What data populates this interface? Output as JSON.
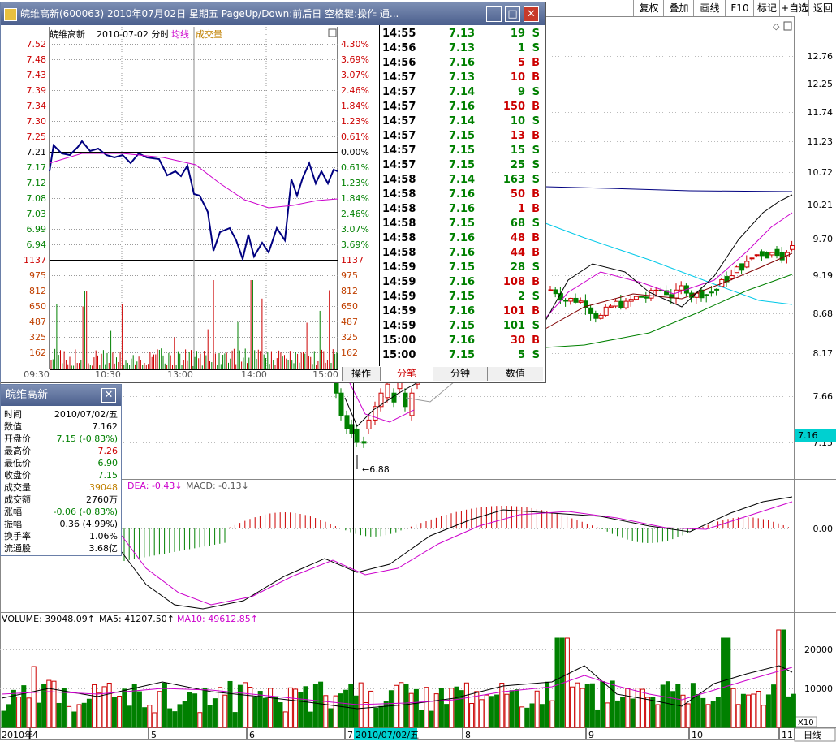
{
  "toolbar": {
    "buttons": [
      "复权",
      "叠加",
      "画线",
      "F10",
      "标记",
      "+自选",
      "返回"
    ],
    "extra_icon": "diamond-icon"
  },
  "price_axis": [
    "12.76",
    "12.25",
    "11.74",
    "11.23",
    "10.72",
    "10.21",
    "9.70",
    "9.19",
    "8.68",
    "8.17",
    "7.66",
    "7.15"
  ],
  "current_price_tag": "7.16",
  "low_marker": "6.88",
  "macd": {
    "dea_label": "DEA: -0.43",
    "macd_label": "MACD: -0.13",
    "zero_label": "0.00"
  },
  "volume": {
    "vol_label": "VOLUME: 39048.09",
    "ma5_label": "MA5: 41207.50",
    "ma10_label": "MA10: 49612.85",
    "axis": [
      "20000",
      "10000"
    ],
    "unit": "X10"
  },
  "date_axis": {
    "year": "2010年",
    "months": [
      "4",
      "5",
      "6",
      "7",
      "8",
      "9",
      "10",
      "11"
    ],
    "cursor_date": "2010/07/02/五",
    "period_btn": "日线"
  },
  "minute_window": {
    "title": "皖维高新(600063)  2010年07月02日  星期五  PageUp/Down:前后日  空格键:操作  通...",
    "header_name": "皖维高新",
    "header_date": "2010-07-02 分时",
    "header_avg": "均线",
    "header_vol": "成交量",
    "price_ticks": [
      "7.52",
      "7.48",
      "7.43",
      "7.39",
      "7.34",
      "7.30",
      "7.25",
      "7.21",
      "7.17",
      "7.12",
      "7.08",
      "7.03",
      "6.99",
      "6.94"
    ],
    "pct_ticks": [
      "4.30%",
      "3.69%",
      "3.07%",
      "2.46%",
      "1.84%",
      "1.23%",
      "0.61%",
      "0.00%",
      "0.61%",
      "1.23%",
      "1.84%",
      "2.46%",
      "3.07%",
      "3.69%"
    ],
    "vol_ticks": [
      "1137",
      "975",
      "812",
      "650",
      "487",
      "325",
      "162"
    ],
    "time_ticks": [
      "09:30",
      "10:30",
      "13:00",
      "14:00",
      "15:00"
    ],
    "tabs": [
      "操作",
      "分笔",
      "分钟",
      "数值"
    ],
    "ticks": [
      {
        "t": "14:55",
        "p": "7.13",
        "v": "19",
        "s": "S"
      },
      {
        "t": "14:56",
        "p": "7.13",
        "v": "1",
        "s": "S"
      },
      {
        "t": "14:56",
        "p": "7.16",
        "v": "5",
        "s": "B"
      },
      {
        "t": "14:57",
        "p": "7.13",
        "v": "10",
        "s": "B"
      },
      {
        "t": "14:57",
        "p": "7.14",
        "v": "9",
        "s": "S"
      },
      {
        "t": "14:57",
        "p": "7.16",
        "v": "150",
        "s": "B"
      },
      {
        "t": "14:57",
        "p": "7.14",
        "v": "10",
        "s": "S"
      },
      {
        "t": "14:57",
        "p": "7.15",
        "v": "13",
        "s": "B"
      },
      {
        "t": "14:57",
        "p": "7.15",
        "v": "15",
        "s": "S"
      },
      {
        "t": "14:57",
        "p": "7.15",
        "v": "25",
        "s": "S"
      },
      {
        "t": "14:58",
        "p": "7.14",
        "v": "163",
        "s": "S"
      },
      {
        "t": "14:58",
        "p": "7.16",
        "v": "50",
        "s": "B"
      },
      {
        "t": "14:58",
        "p": "7.16",
        "v": "1",
        "s": "B"
      },
      {
        "t": "14:58",
        "p": "7.15",
        "v": "68",
        "s": "S"
      },
      {
        "t": "14:58",
        "p": "7.16",
        "v": "48",
        "s": "B"
      },
      {
        "t": "14:58",
        "p": "7.16",
        "v": "44",
        "s": "B"
      },
      {
        "t": "14:59",
        "p": "7.15",
        "v": "28",
        "s": "S"
      },
      {
        "t": "14:59",
        "p": "7.16",
        "v": "108",
        "s": "B"
      },
      {
        "t": "14:59",
        "p": "7.15",
        "v": "2",
        "s": "S"
      },
      {
        "t": "14:59",
        "p": "7.16",
        "v": "101",
        "s": "B"
      },
      {
        "t": "14:59",
        "p": "7.15",
        "v": "101",
        "s": "S"
      },
      {
        "t": "15:00",
        "p": "7.16",
        "v": "30",
        "s": "B"
      },
      {
        "t": "15:00",
        "p": "7.15",
        "v": "5",
        "s": "S"
      }
    ]
  },
  "info_window": {
    "title": "皖维高新",
    "rows": [
      {
        "k": "时间",
        "v": "2010/07/02/五",
        "c": "#000000"
      },
      {
        "k": "数值",
        "v": "7.162",
        "c": "#000000"
      },
      {
        "k": "开盘价",
        "v": "7.15 (-0.83%)",
        "c": "#008000"
      },
      {
        "k": "最高价",
        "v": "7.26",
        "c": "#cc0000"
      },
      {
        "k": "最低价",
        "v": "6.90",
        "c": "#008000"
      },
      {
        "k": "收盘价",
        "v": "7.15",
        "c": "#008000"
      },
      {
        "k": "成交量",
        "v": "39048",
        "c": "#c08000"
      },
      {
        "k": "成交额",
        "v": "2760万",
        "c": "#000000"
      },
      {
        "k": "涨幅",
        "v": "-0.06 (-0.83%)",
        "c": "#008000"
      },
      {
        "k": "振幅",
        "v": "0.36 (4.99%)",
        "c": "#000000"
      },
      {
        "k": "换手率",
        "v": "1.06%",
        "c": "#000000"
      },
      {
        "k": "流通股",
        "v": "3.68亿",
        "c": "#000000"
      }
    ]
  },
  "colors": {
    "up": "#cc0000",
    "down": "#008000",
    "window_title": "#4b5f8d",
    "avg_line": "#cc00cc",
    "price_line": "#000080"
  }
}
